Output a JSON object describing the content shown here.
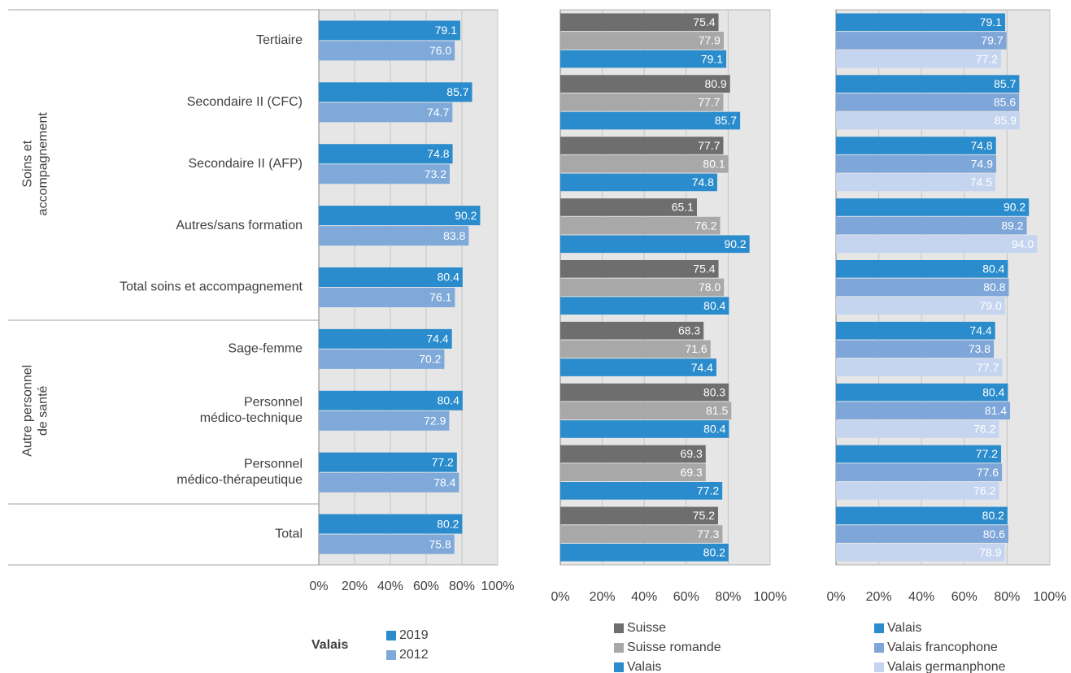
{
  "chart_data": [
    {
      "type": "barh",
      "categories": [
        "Tertiaire",
        "Secondaire II (CFC)",
        "Secondaire II (AFP)",
        "Autres/sans formation",
        "Total soins et accompagnement",
        "Sage-femme",
        "Personnel\nmédico-technique",
        "Personnel\nmédico-thérapeutique",
        "Total"
      ],
      "groups": [
        "Soins et\naccompagnement",
        "Autre personnel\nde santé"
      ],
      "legend_title": "Valais",
      "series": [
        {
          "name": "2019",
          "color": "#2a8ccc",
          "values": [
            79.1,
            85.7,
            74.8,
            90.2,
            80.4,
            74.4,
            80.4,
            77.2,
            80.2
          ],
          "value_labels": [
            "79.1",
            "85.7",
            "74.8",
            "90.2",
            "80.4",
            "74.4",
            "80.4",
            "77.2",
            "80.2"
          ]
        },
        {
          "name": "2012",
          "color": "#7fa9d9",
          "values": [
            76.0,
            74.7,
            73.2,
            83.8,
            76.1,
            70.2,
            72.9,
            78.4,
            75.8
          ],
          "value_labels": [
            "76.0",
            "74.7",
            "73.2",
            "83.8",
            "76.1",
            "70.2",
            "72.9",
            "78.4",
            "75.8"
          ]
        }
      ],
      "xlim": [
        0,
        100
      ],
      "xticks": [
        {
          "value": 0,
          "label": "0%"
        },
        {
          "value": 20,
          "label": "20%"
        },
        {
          "value": 40,
          "label": "40%"
        },
        {
          "value": 60,
          "label": "60%"
        },
        {
          "value": 80,
          "label": "80%"
        },
        {
          "value": 100,
          "label": "100%"
        }
      ],
      "grid": true
    },
    {
      "type": "barh",
      "series": [
        {
          "name": "Suisse",
          "color": "#6e6e6e",
          "values": [
            75.4,
            80.9,
            77.7,
            65.1,
            75.4,
            68.3,
            80.3,
            69.3,
            75.2
          ],
          "value_labels": [
            "75.4",
            "80.9",
            "77.7",
            "65.1",
            "75.4",
            "68.3",
            "80.3",
            "69.3",
            "75.2"
          ]
        },
        {
          "name": "Suisse romande",
          "color": "#a8a8a8",
          "values": [
            77.9,
            77.7,
            80.1,
            76.2,
            78.0,
            71.6,
            81.5,
            69.3,
            77.3
          ],
          "value_labels": [
            "77.9",
            "77.7",
            "80.1",
            "76.2",
            "78.0",
            "71.6",
            "81.5",
            "69.3",
            "77.3"
          ]
        },
        {
          "name": "Valais",
          "color": "#2a8ccc",
          "values": [
            79.1,
            85.7,
            74.8,
            90.2,
            80.4,
            74.4,
            80.4,
            77.2,
            80.2
          ],
          "value_labels": [
            "79.1",
            "85.7",
            "74.8",
            "90.2",
            "80.4",
            "74.4",
            "80.4",
            "77.2",
            "80.2"
          ]
        }
      ],
      "xlim": [
        0,
        100
      ],
      "xticks": [
        {
          "value": 0,
          "label": "0%"
        },
        {
          "value": 20,
          "label": "20%"
        },
        {
          "value": 40,
          "label": "40%"
        },
        {
          "value": 60,
          "label": "60%"
        },
        {
          "value": 80,
          "label": "80%"
        },
        {
          "value": 100,
          "label": "100%"
        }
      ],
      "grid": true
    },
    {
      "type": "barh",
      "series": [
        {
          "name": "Valais",
          "color": "#2a8ccc",
          "values": [
            79.1,
            85.7,
            74.8,
            90.2,
            80.4,
            74.4,
            80.4,
            77.2,
            80.2
          ],
          "value_labels": [
            "79.1",
            "85.7",
            "74.8",
            "90.2",
            "80.4",
            "74.4",
            "80.4",
            "77.2",
            "80.2"
          ]
        },
        {
          "name": "Valais francophone",
          "color": "#7ea6d8",
          "values": [
            79.7,
            85.6,
            74.9,
            89.2,
            80.8,
            73.8,
            81.4,
            77.6,
            80.6
          ],
          "value_labels": [
            "79.7",
            "85.6",
            "74.9",
            "89.2",
            "80.8",
            "73.8",
            "81.4",
            "77.6",
            "80.6"
          ]
        },
        {
          "name": "Valais germanphone",
          "color": "#c5d5ef",
          "values": [
            77.2,
            85.9,
            74.5,
            94.0,
            79.0,
            77.7,
            76.2,
            76.2,
            78.9
          ],
          "value_labels": [
            "77.2",
            "85.9",
            "74.5",
            "94.0",
            "79.0",
            "77.7",
            "76.2",
            "76.2",
            "78.9"
          ]
        }
      ],
      "xlim": [
        0,
        100
      ],
      "xticks": [
        {
          "value": 0,
          "label": "0%"
        },
        {
          "value": 20,
          "label": "20%"
        },
        {
          "value": 40,
          "label": "40%"
        },
        {
          "value": 60,
          "label": "60%"
        },
        {
          "value": 80,
          "label": "80%"
        },
        {
          "value": 100,
          "label": "100%"
        }
      ],
      "grid": true
    }
  ]
}
